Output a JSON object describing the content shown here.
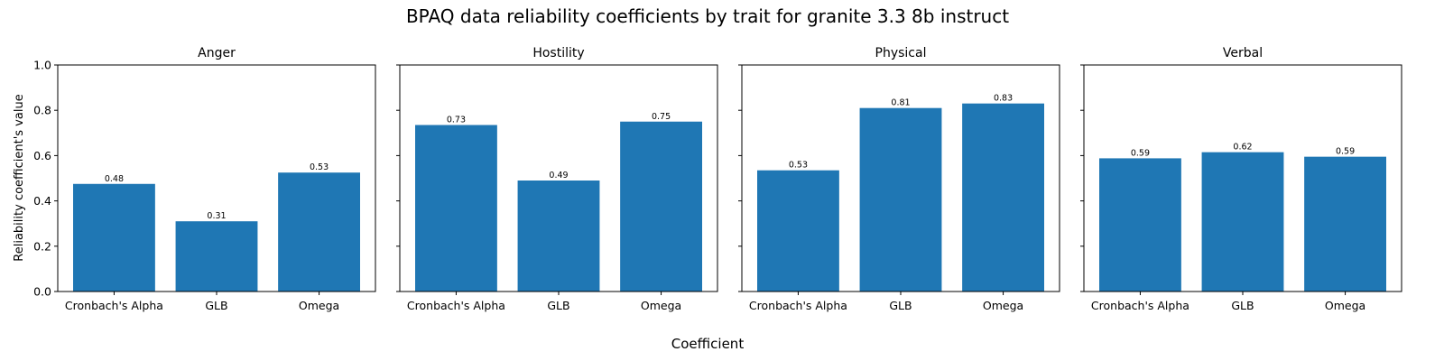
{
  "chart_data": {
    "type": "bar",
    "title": "BPAQ data reliability coefficients by trait for granite 3.3 8b instruct",
    "xlabel": "Coefficient",
    "ylabel": "Reliability coefficient's value",
    "ylim": [
      0,
      1
    ],
    "yticks": [
      "0.0",
      "0.2",
      "0.4",
      "0.6",
      "0.8",
      "1.0"
    ],
    "bar_color": "#1f77b4",
    "grid": false,
    "shared_y": true,
    "categories": [
      "Cronbach's Alpha",
      "GLB",
      "Omega"
    ],
    "panels": [
      {
        "title": "Anger",
        "values": [
          0.475,
          0.31,
          0.525
        ],
        "labels": [
          "0.48",
          "0.31",
          "0.53"
        ]
      },
      {
        "title": "Hostility",
        "values": [
          0.735,
          0.49,
          0.75
        ],
        "labels": [
          "0.73",
          "0.49",
          "0.75"
        ]
      },
      {
        "title": "Physical",
        "values": [
          0.535,
          0.81,
          0.83
        ],
        "labels": [
          "0.53",
          "0.81",
          "0.83"
        ]
      },
      {
        "title": "Verbal",
        "values": [
          0.588,
          0.615,
          0.595
        ],
        "labels": [
          "0.59",
          "0.62",
          "0.59"
        ]
      }
    ]
  }
}
